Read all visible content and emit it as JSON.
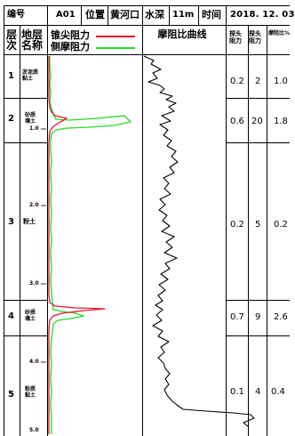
{
  "header": {
    "no_label": "编号",
    "no_value": "A01",
    "loc_label": "位置",
    "loc_value": "黄河口",
    "depth_label": "水深",
    "depth_value": "11m",
    "time_label": "时间",
    "time_value": "2018. 12. 03"
  },
  "columns": {
    "layer_no": "层次",
    "layer_name": "地层名称",
    "legend_cone": "锥尖阻力",
    "legend_sleeve": "侧摩阻力",
    "friction_ratio": "摩阻比曲线",
    "probe_cone": "探头阻力",
    "probe_sleeve": "探头阻力",
    "probe_ratio": "摩阻比%"
  },
  "colors": {
    "cone": "#e8142a",
    "sleeve": "#22dd22",
    "ratio": "#000000"
  },
  "depth_ticks": [
    "1.0",
    "2.0",
    "3.0",
    "4.0",
    "5.0"
  ],
  "layers": [
    {
      "no": "1",
      "name": "淤泥质黏土",
      "v1": "0.2",
      "v2": "2",
      "v3": "1.0"
    },
    {
      "no": "2",
      "name": "砂质壤土",
      "v1": "0.6",
      "v2": "20",
      "v3": "1.8"
    },
    {
      "no": "3",
      "name": "粉土",
      "v1": "0.2",
      "v2": "5",
      "v3": "0.2"
    },
    {
      "no": "4",
      "name": "砂质壤土",
      "v1": "0.7",
      "v2": "9",
      "v3": "2.6"
    },
    {
      "no": "5",
      "name": "粉质黏土",
      "v1": "0.1",
      "v2": "4",
      "v3": "0.4"
    }
  ]
}
